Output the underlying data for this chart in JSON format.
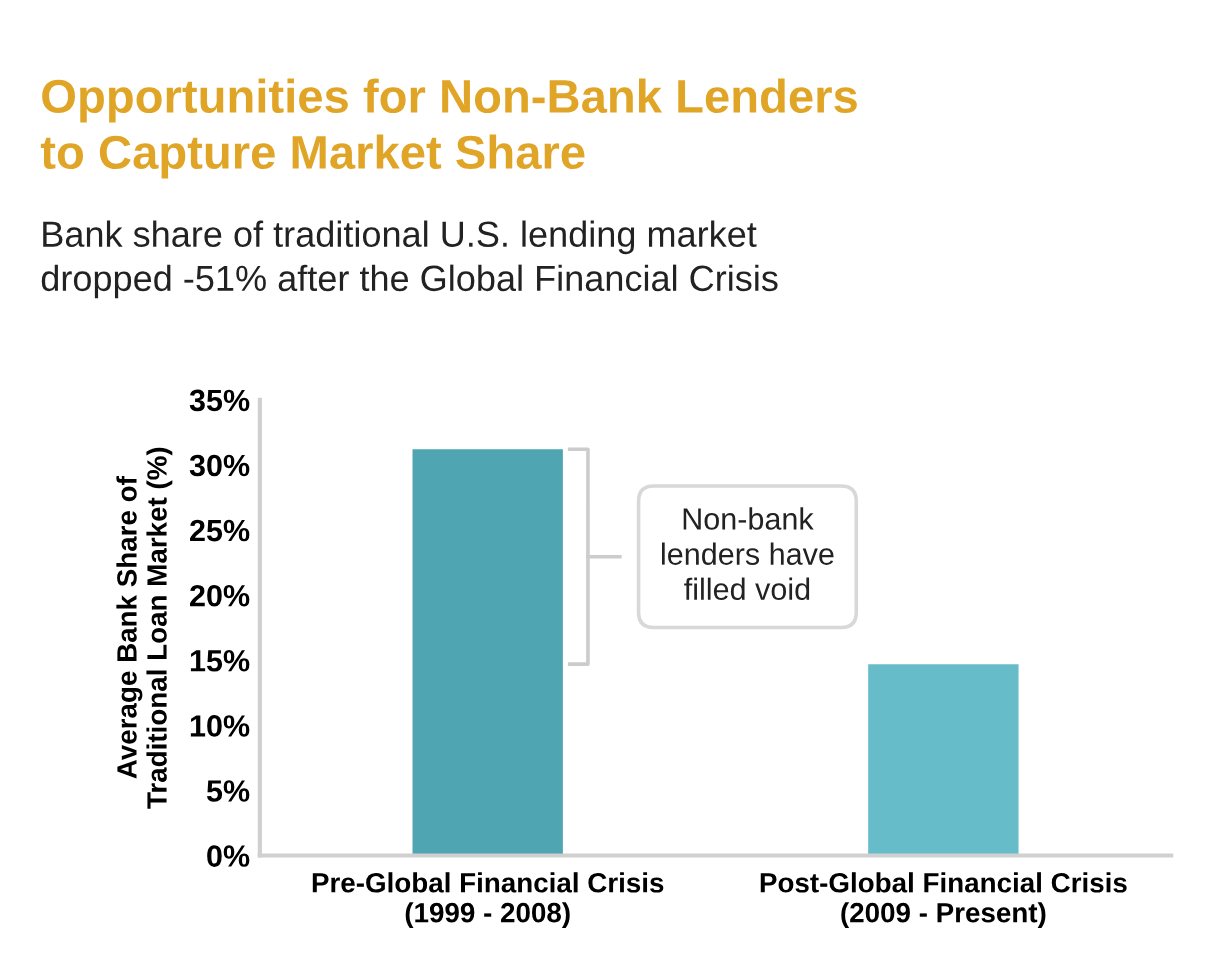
{
  "chart_data": {
    "type": "bar",
    "title": "Opportunities for Non-Bank Lenders\nto Capture Market Share",
    "subtitle": "Bank share of traditional U.S. lending market\ndropped -51% after the Global Financial Crisis",
    "ylabel": "Average Bank Share of\nTraditional Loan Market (%)",
    "categories": [
      "Pre-Global Financial Crisis\n(1999 - 2008)",
      "Post-Global Financial Crisis\n(2009 - Present)"
    ],
    "values": [
      31.2,
      14.7
    ],
    "colors": [
      "#4fa5b2",
      "#66bcc8"
    ],
    "ylim": [
      0,
      35
    ],
    "yticks": [
      {
        "value": 0,
        "label": "0%"
      },
      {
        "value": 5,
        "label": "5%"
      },
      {
        "value": 10,
        "label": "10%"
      },
      {
        "value": 15,
        "label": "15%"
      },
      {
        "value": 20,
        "label": "20%"
      },
      {
        "value": 25,
        "label": "25%"
      },
      {
        "value": 30,
        "label": "30%"
      },
      {
        "value": 35,
        "label": "35%"
      }
    ],
    "grid": false,
    "annotations": [
      "Non-bank\nlenders have\nfilled void"
    ]
  }
}
